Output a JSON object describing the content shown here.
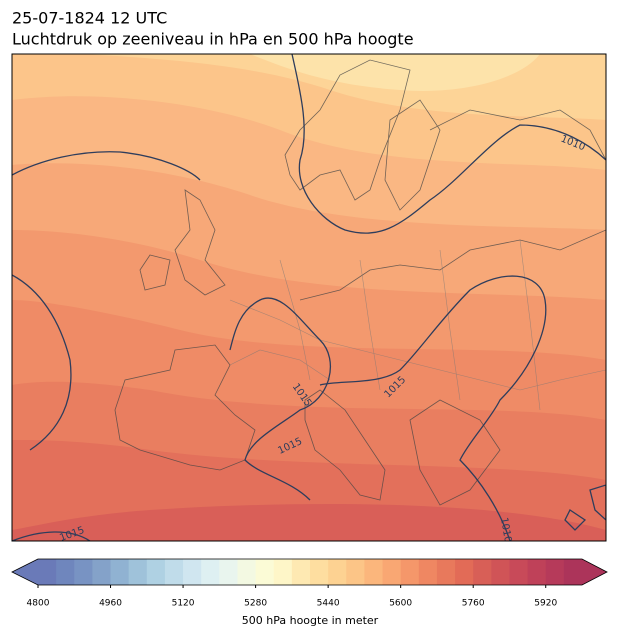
{
  "header": {
    "title": "25-07-1824 12 UTC",
    "subtitle": "Luchtdruk op zeeniveau in hPa en 500 hPa hoogte"
  },
  "contour_labels": [
    "1010",
    "1015",
    "1015",
    "1015",
    "1015",
    "1010"
  ],
  "colorbar": {
    "lim": [
      4800,
      6000
    ],
    "ticks": [
      4800,
      4960,
      5120,
      5280,
      5440,
      5600,
      5760,
      5920
    ],
    "label": "500 hPa hoogte in meter",
    "colors": [
      "#6a7ab8",
      "#6f86bd",
      "#7893c3",
      "#84a2c9",
      "#90b2d2",
      "#9fc2da",
      "#afd1e3",
      "#c0dcea",
      "#d0e6f0",
      "#def0f2",
      "#e9f5ee",
      "#f3f9e2",
      "#fbfbd6",
      "#fef6c8",
      "#fee9b2",
      "#fedea0",
      "#fdd292",
      "#fcc587",
      "#fbb67c",
      "#f9a773",
      "#f5976a",
      "#ef8762",
      "#e8795c",
      "#e26b57",
      "#d85f57",
      "#d05457",
      "#c84a59",
      "#bf4159",
      "#b63a5a",
      "#ac345a"
    ]
  }
}
